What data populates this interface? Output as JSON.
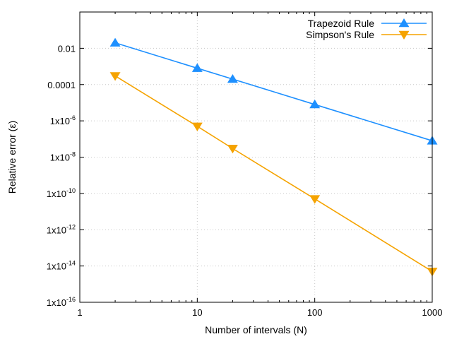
{
  "chart_data": {
    "type": "line",
    "title": "",
    "xlabel": "Number of intervals (N)",
    "ylabel": "Relative error (ε)",
    "xscale": "log",
    "yscale": "log",
    "xlim": [
      1,
      1000
    ],
    "ylim": [
      1e-16,
      1
    ],
    "x_ticks": [
      {
        "value": 1,
        "label": "1"
      },
      {
        "value": 10,
        "label": "10"
      },
      {
        "value": 100,
        "label": "100"
      },
      {
        "value": 1000,
        "label": "1000"
      }
    ],
    "y_ticks": [
      {
        "value": 0.01,
        "label": "0.01",
        "base": "0.01",
        "exp": ""
      },
      {
        "value": 0.0001,
        "label": "0.0001",
        "base": "0.0001",
        "exp": ""
      },
      {
        "value": 1e-06,
        "label": "1x10-6",
        "base": "1x10",
        "exp": "-6"
      },
      {
        "value": 1e-08,
        "label": "1x10-8",
        "base": "1x10",
        "exp": "-8"
      },
      {
        "value": 1e-10,
        "label": "1x10-10",
        "base": "1x10",
        "exp": "-10"
      },
      {
        "value": 1e-12,
        "label": "1x10-12",
        "base": "1x10",
        "exp": "-12"
      },
      {
        "value": 1e-14,
        "label": "1x10-14",
        "base": "1x10",
        "exp": "-14"
      },
      {
        "value": 1e-16,
        "label": "1x10-16",
        "base": "1x10",
        "exp": "-16"
      }
    ],
    "grid": true,
    "legend_position": "top-right",
    "series": [
      {
        "name": "Trapezoid Rule",
        "color": "#1e90ff",
        "marker": "triangle-up",
        "x": [
          2,
          10,
          20,
          100,
          1000
        ],
        "y": [
          0.02,
          0.0008,
          0.0002,
          8e-06,
          8e-08
        ]
      },
      {
        "name": "Simpson's Rule",
        "color": "#f5a300",
        "marker": "triangle-down",
        "x": [
          2,
          10,
          20,
          100,
          1000
        ],
        "y": [
          0.0003,
          5e-07,
          3e-08,
          5e-11,
          5e-15
        ]
      }
    ]
  }
}
